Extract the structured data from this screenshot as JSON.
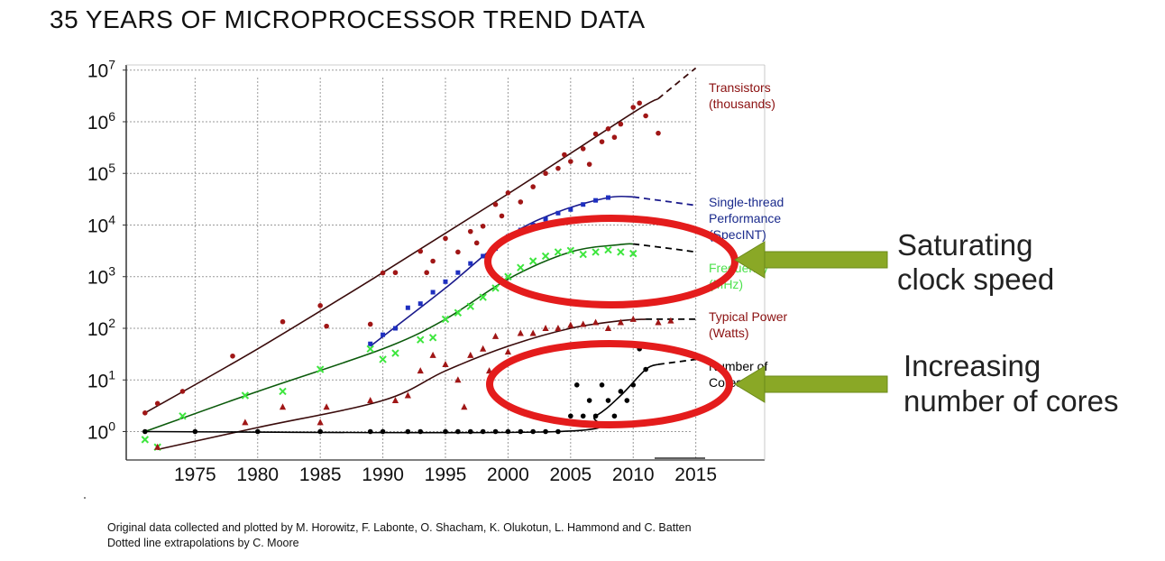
{
  "title": "35 YEARS OF MICROPROCESSOR TREND DATA",
  "credits": {
    "line1": "Original data collected and plotted by M. Horowitz, F. Labonte, O. Shacham, K. Olukotun, L. Hammond and C. Batten",
    "line2": "Dotted line extrapolations by C. Moore"
  },
  "annotations": {
    "saturating": [
      "Saturating",
      "clock speed"
    ],
    "cores": [
      "Increasing",
      "number of cores"
    ],
    "ellipse_color": "#e41c1c",
    "arrow_color": "#8aa826"
  },
  "chart_data": {
    "type": "scatter",
    "x_ticks": [
      1975,
      1980,
      1985,
      1990,
      1995,
      2000,
      2005,
      2010,
      2015
    ],
    "y_ticks": [
      {
        "base": "10",
        "exp": "7",
        "value": 10000000
      },
      {
        "base": "10",
        "exp": "6",
        "value": 1000000
      },
      {
        "base": "10",
        "exp": "5",
        "value": 100000
      },
      {
        "base": "10",
        "exp": "4",
        "value": 10000
      },
      {
        "base": "10",
        "exp": "3",
        "value": 1000
      },
      {
        "base": "10",
        "exp": "2",
        "value": 100
      },
      {
        "base": "10",
        "exp": "1",
        "value": 10
      },
      {
        "base": "10",
        "exp": "0",
        "value": 1
      }
    ],
    "xlim": [
      1969.5,
      2020.5
    ],
    "ylog": true,
    "ylim_exp": [
      -0.55,
      7.1
    ],
    "grid": true,
    "series": [
      {
        "name": "Transistors\n(thousands)",
        "marker": "circle",
        "color": "#a01616",
        "label_color": "#8b1010",
        "points": [
          [
            1971,
            2.3
          ],
          [
            1972,
            3.5
          ],
          [
            1974,
            6
          ],
          [
            1978,
            29
          ],
          [
            1982,
            134
          ],
          [
            1985,
            275
          ],
          [
            1985.5,
            110
          ],
          [
            1989,
            120
          ],
          [
            1990,
            1180
          ],
          [
            1991,
            1200
          ],
          [
            1993,
            3100
          ],
          [
            1993.5,
            1200
          ],
          [
            1994,
            2000
          ],
          [
            1995,
            5500
          ],
          [
            1996,
            3000
          ],
          [
            1997,
            7500
          ],
          [
            1997.5,
            4500
          ],
          [
            1998,
            9500
          ],
          [
            1999,
            25000
          ],
          [
            1999.5,
            15000
          ],
          [
            2000,
            42000
          ],
          [
            2001,
            28000
          ],
          [
            2002,
            55000
          ],
          [
            2003,
            100000
          ],
          [
            2004,
            125000
          ],
          [
            2004.5,
            230000
          ],
          [
            2005,
            170000
          ],
          [
            2006,
            300000
          ],
          [
            2006.5,
            150000
          ],
          [
            2007,
            580000
          ],
          [
            2007.5,
            410000
          ],
          [
            2008,
            730000
          ],
          [
            2008.5,
            500000
          ],
          [
            2009,
            900000
          ],
          [
            2010,
            1900000
          ],
          [
            2010.5,
            2300000
          ],
          [
            2011,
            1300000
          ],
          [
            2012,
            600000
          ]
        ],
        "trend": [
          [
            1971,
            2.3
          ],
          [
            1980,
            40
          ],
          [
            1990,
            1200
          ],
          [
            2000,
            40000
          ],
          [
            2010,
            1500000
          ],
          [
            2012,
            2800000
          ]
        ],
        "extrapolation": [
          [
            2012,
            2800000
          ],
          [
            2015,
            11000000
          ]
        ]
      },
      {
        "name": "Single-thread\nPerformance\n(SpecINT)",
        "marker": "square",
        "color": "#1e2fc0",
        "label_color": "#1a2a8c",
        "points": [
          [
            1989,
            50
          ],
          [
            1990,
            75
          ],
          [
            1991,
            100
          ],
          [
            1992,
            250
          ],
          [
            1993,
            300
          ],
          [
            1994,
            500
          ],
          [
            1995,
            800
          ],
          [
            1996,
            1200
          ],
          [
            1997,
            1800
          ],
          [
            1998,
            2500
          ],
          [
            1999,
            3500
          ],
          [
            2000,
            6000
          ],
          [
            2001,
            8000
          ],
          [
            2002,
            10000
          ],
          [
            2003,
            13000
          ],
          [
            2004,
            17000
          ],
          [
            2005,
            20000
          ],
          [
            2006,
            25000
          ],
          [
            2007,
            30000
          ],
          [
            2008,
            34000
          ]
        ],
        "trend": [
          [
            1989,
            45
          ],
          [
            1995,
            600
          ],
          [
            2000,
            6000
          ],
          [
            2004,
            18000
          ],
          [
            2008,
            34000
          ],
          [
            2010,
            35000
          ]
        ],
        "extrapolation": [
          [
            2010,
            35000
          ],
          [
            2013,
            28000
          ],
          [
            2015,
            24000
          ]
        ]
      },
      {
        "name": "Frequency\n(MHz)",
        "marker": "x",
        "color": "#3ee63e",
        "label_color": "#4ee24e",
        "points": [
          [
            1971,
            0.7
          ],
          [
            1972,
            0.5
          ],
          [
            1974,
            2
          ],
          [
            1979,
            5
          ],
          [
            1982,
            6
          ],
          [
            1985,
            16
          ],
          [
            1989,
            40
          ],
          [
            1990,
            25
          ],
          [
            1991,
            33
          ],
          [
            1993,
            60
          ],
          [
            1994,
            66
          ],
          [
            1995,
            150
          ],
          [
            1996,
            200
          ],
          [
            1997,
            266
          ],
          [
            1998,
            400
          ],
          [
            1999,
            600
          ],
          [
            2000,
            1000
          ],
          [
            2001,
            1500
          ],
          [
            2002,
            2000
          ],
          [
            2003,
            2500
          ],
          [
            2004,
            3000
          ],
          [
            2005,
            3200
          ],
          [
            2006,
            2700
          ],
          [
            2007,
            3000
          ],
          [
            2008,
            3300
          ],
          [
            2009,
            3000
          ],
          [
            2010,
            2800
          ]
        ],
        "trend": [
          [
            1971,
            1
          ],
          [
            1980,
            6
          ],
          [
            1990,
            40
          ],
          [
            1995,
            150
          ],
          [
            2000,
            900
          ],
          [
            2005,
            3000
          ],
          [
            2009,
            4200
          ],
          [
            2010,
            4300
          ]
        ],
        "extrapolation": [
          [
            2010,
            4300
          ],
          [
            2013,
            3500
          ],
          [
            2015,
            3000
          ]
        ]
      },
      {
        "name": "Typical Power\n(Watts)",
        "marker": "triangle",
        "color": "#a01616",
        "label_color": "#8b1010",
        "points": [
          [
            1972,
            0.5
          ],
          [
            1979,
            1.5
          ],
          [
            1982,
            3
          ],
          [
            1985,
            1.5
          ],
          [
            1985.5,
            3
          ],
          [
            1989,
            4
          ],
          [
            1991,
            4
          ],
          [
            1992,
            5
          ],
          [
            1993,
            15
          ],
          [
            1994,
            30
          ],
          [
            1995,
            20
          ],
          [
            1996,
            10
          ],
          [
            1996.5,
            3
          ],
          [
            1997,
            30
          ],
          [
            1998,
            40
          ],
          [
            1998.5,
            15
          ],
          [
            1999,
            70
          ],
          [
            2000,
            35
          ],
          [
            2001,
            80
          ],
          [
            2002,
            80
          ],
          [
            2003,
            100
          ],
          [
            2004,
            100
          ],
          [
            2005,
            115
          ],
          [
            2006,
            120
          ],
          [
            2007,
            130
          ],
          [
            2008,
            100
          ],
          [
            2009,
            130
          ],
          [
            2010,
            150
          ],
          [
            2012,
            130
          ],
          [
            2013,
            140
          ]
        ],
        "trend": [
          [
            1972,
            0.45
          ],
          [
            1980,
            1.2
          ],
          [
            1990,
            4
          ],
          [
            1995,
            15
          ],
          [
            2000,
            45
          ],
          [
            2005,
            100
          ],
          [
            2009,
            140
          ],
          [
            2011,
            150
          ]
        ],
        "extrapolation": [
          [
            2011,
            150
          ],
          [
            2015,
            150
          ]
        ]
      },
      {
        "name": "Number of\nCores",
        "marker": "circle",
        "color": "#000000",
        "label_color": "#000000",
        "points": [
          [
            1971,
            1
          ],
          [
            1975,
            1
          ],
          [
            1980,
            1
          ],
          [
            1985,
            1
          ],
          [
            1989,
            1
          ],
          [
            1990,
            1
          ],
          [
            1992,
            1
          ],
          [
            1993,
            1
          ],
          [
            1995,
            1
          ],
          [
            1996,
            1
          ],
          [
            1997,
            1
          ],
          [
            1998,
            1
          ],
          [
            1999,
            1
          ],
          [
            2000,
            1
          ],
          [
            2001,
            1
          ],
          [
            2002,
            1
          ],
          [
            2003,
            1
          ],
          [
            2004,
            1
          ],
          [
            2005,
            2
          ],
          [
            2005.5,
            8
          ],
          [
            2006,
            2
          ],
          [
            2006.5,
            4
          ],
          [
            2007,
            2
          ],
          [
            2007.5,
            8
          ],
          [
            2008,
            4
          ],
          [
            2008.5,
            2
          ],
          [
            2009,
            6
          ],
          [
            2009.5,
            4
          ],
          [
            2010,
            8
          ],
          [
            2010.5,
            40
          ],
          [
            2011,
            16
          ]
        ],
        "trend": [
          [
            1971,
            1
          ],
          [
            2004,
            1
          ],
          [
            2007,
            2
          ],
          [
            2009,
            5
          ],
          [
            2011,
            16
          ],
          [
            2012,
            20
          ]
        ],
        "extrapolation": [
          [
            2012,
            20
          ],
          [
            2015,
            25
          ]
        ]
      }
    ]
  }
}
